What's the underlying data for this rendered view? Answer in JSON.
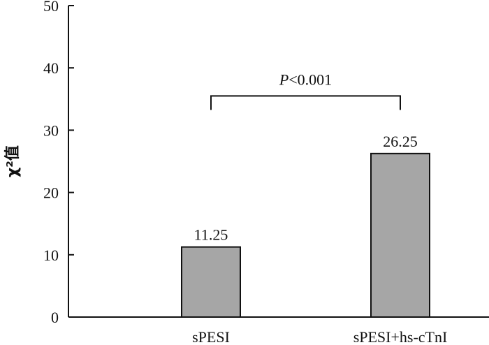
{
  "chart_data": {
    "type": "bar",
    "categories": [
      "sPESI",
      "sPESI+hs-cTnI"
    ],
    "values": [
      11.25,
      26.25
    ],
    "data_labels": [
      "11.25",
      "26.25"
    ],
    "ylabel": "χ²值",
    "xlabel": "",
    "ylim": [
      0,
      50
    ],
    "yticks": [
      0,
      10,
      20,
      30,
      40,
      50
    ],
    "grid": false,
    "bar_color": "#a6a6a6",
    "significance": {
      "between": [
        "sPESI",
        "sPESI+hs-cTnI"
      ],
      "p_symbol": "P",
      "p_rest": "<0.001",
      "bracket_level": 35.5
    }
  }
}
